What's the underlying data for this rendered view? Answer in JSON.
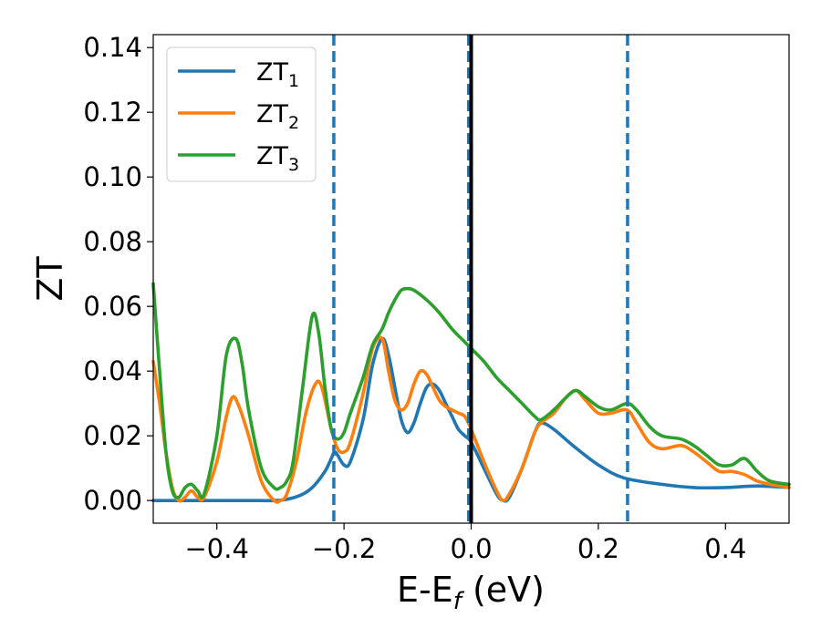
{
  "chart_data": {
    "type": "line",
    "xlabel_main": "E-E",
    "xlabel_sub": "f",
    "xlabel_unit": " (eV)",
    "ylabel": "ZT",
    "xlim": [
      -0.5,
      0.5
    ],
    "ylim": [
      -0.007,
      0.144
    ],
    "xticks": [
      -0.4,
      -0.2,
      0.0,
      0.2,
      0.4
    ],
    "xtick_labels": [
      "−0.4",
      "−0.2",
      "0.0",
      "0.2",
      "0.4"
    ],
    "yticks": [
      0.0,
      0.02,
      0.04,
      0.06,
      0.08,
      0.1,
      0.12,
      0.14
    ],
    "ytick_labels": [
      "0.00",
      "0.02",
      "0.04",
      "0.06",
      "0.08",
      "0.10",
      "0.12",
      "0.14"
    ],
    "grid": false,
    "legend_position": "top-left",
    "vlines": [
      {
        "x": -0.216,
        "style": "dashed",
        "color": "#1f77b4"
      },
      {
        "x": -0.004,
        "style": "dashed",
        "color": "#1f77b4"
      },
      {
        "x": 0.0,
        "style": "solid",
        "color": "#000000"
      },
      {
        "x": 0.246,
        "style": "dashed",
        "color": "#1f77b4"
      }
    ],
    "series": [
      {
        "name_main": "ZT",
        "name_sub": "1",
        "color": "#1f77b4",
        "x": [
          -0.5,
          -0.45,
          -0.4,
          -0.35,
          -0.3,
          -0.27,
          -0.25,
          -0.23,
          -0.22,
          -0.215,
          -0.21,
          -0.2,
          -0.19,
          -0.17,
          -0.155,
          -0.14,
          -0.13,
          -0.12,
          -0.11,
          -0.1,
          -0.09,
          -0.08,
          -0.07,
          -0.06,
          -0.05,
          -0.04,
          -0.03,
          -0.02,
          -0.01,
          0.0,
          0.02,
          0.04,
          0.05,
          0.06,
          0.08,
          0.1,
          0.11,
          0.13,
          0.16,
          0.2,
          0.24,
          0.3,
          0.35,
          0.4,
          0.45,
          0.5
        ],
        "y": [
          0.0,
          0.0,
          0.0,
          0.0,
          0.0001,
          0.0015,
          0.004,
          0.009,
          0.013,
          0.015,
          0.014,
          0.011,
          0.012,
          0.025,
          0.042,
          0.05,
          0.045,
          0.035,
          0.025,
          0.021,
          0.024,
          0.03,
          0.035,
          0.036,
          0.034,
          0.03,
          0.026,
          0.022,
          0.02,
          0.018,
          0.01,
          0.002,
          0.0,
          0.001,
          0.01,
          0.021,
          0.024,
          0.022,
          0.017,
          0.011,
          0.007,
          0.005,
          0.004,
          0.004,
          0.0045,
          0.004
        ]
      },
      {
        "name_main": "ZT",
        "name_sub": "2",
        "color": "#ff7f0e",
        "x": [
          -0.5,
          -0.49,
          -0.48,
          -0.47,
          -0.46,
          -0.45,
          -0.44,
          -0.43,
          -0.42,
          -0.4,
          -0.385,
          -0.375,
          -0.365,
          -0.35,
          -0.33,
          -0.31,
          -0.3,
          -0.29,
          -0.275,
          -0.26,
          -0.245,
          -0.235,
          -0.22,
          -0.21,
          -0.2,
          -0.19,
          -0.17,
          -0.155,
          -0.14,
          -0.13,
          -0.12,
          -0.11,
          -0.1,
          -0.09,
          -0.08,
          -0.07,
          -0.06,
          -0.05,
          -0.04,
          -0.03,
          -0.02,
          -0.01,
          0.0,
          0.02,
          0.04,
          0.05,
          0.06,
          0.08,
          0.1,
          0.11,
          0.13,
          0.15,
          0.165,
          0.18,
          0.2,
          0.22,
          0.245,
          0.26,
          0.28,
          0.3,
          0.33,
          0.35,
          0.37,
          0.39,
          0.41,
          0.43,
          0.45,
          0.47,
          0.5
        ],
        "y": [
          0.043,
          0.03,
          0.015,
          0.004,
          0.0,
          0.001,
          0.003,
          0.001,
          0.001,
          0.012,
          0.026,
          0.032,
          0.029,
          0.02,
          0.006,
          0.0,
          0.0,
          0.002,
          0.012,
          0.027,
          0.036,
          0.035,
          0.022,
          0.016,
          0.015,
          0.018,
          0.033,
          0.047,
          0.05,
          0.04,
          0.031,
          0.028,
          0.03,
          0.036,
          0.04,
          0.039,
          0.035,
          0.031,
          0.029,
          0.028,
          0.027,
          0.026,
          0.022,
          0.012,
          0.003,
          0.0,
          0.002,
          0.01,
          0.021,
          0.024,
          0.027,
          0.032,
          0.034,
          0.031,
          0.027,
          0.027,
          0.028,
          0.024,
          0.018,
          0.016,
          0.017,
          0.015,
          0.012,
          0.009,
          0.009,
          0.008,
          0.006,
          0.005,
          0.004
        ]
      },
      {
        "name_main": "ZT",
        "name_sub": "3",
        "color": "#2ca02c",
        "x": [
          -0.5,
          -0.49,
          -0.48,
          -0.47,
          -0.46,
          -0.45,
          -0.44,
          -0.43,
          -0.42,
          -0.4,
          -0.385,
          -0.37,
          -0.36,
          -0.35,
          -0.33,
          -0.31,
          -0.3,
          -0.29,
          -0.28,
          -0.265,
          -0.25,
          -0.24,
          -0.23,
          -0.22,
          -0.21,
          -0.2,
          -0.19,
          -0.17,
          -0.155,
          -0.14,
          -0.13,
          -0.12,
          -0.11,
          -0.1,
          -0.09,
          -0.07,
          -0.05,
          -0.03,
          -0.01,
          0.0,
          0.02,
          0.04,
          0.06,
          0.08,
          0.1,
          0.11,
          0.13,
          0.15,
          0.165,
          0.18,
          0.2,
          0.22,
          0.245,
          0.26,
          0.28,
          0.3,
          0.33,
          0.35,
          0.37,
          0.39,
          0.41,
          0.43,
          0.45,
          0.47,
          0.5
        ],
        "y": [
          0.067,
          0.04,
          0.015,
          0.003,
          0.001,
          0.004,
          0.005,
          0.003,
          0.002,
          0.02,
          0.045,
          0.05,
          0.042,
          0.028,
          0.01,
          0.004,
          0.004,
          0.006,
          0.012,
          0.035,
          0.057,
          0.052,
          0.035,
          0.022,
          0.019,
          0.021,
          0.027,
          0.038,
          0.048,
          0.053,
          0.058,
          0.062,
          0.065,
          0.0655,
          0.065,
          0.062,
          0.058,
          0.053,
          0.049,
          0.047,
          0.043,
          0.038,
          0.034,
          0.03,
          0.026,
          0.025,
          0.028,
          0.032,
          0.034,
          0.032,
          0.029,
          0.028,
          0.03,
          0.028,
          0.023,
          0.02,
          0.019,
          0.017,
          0.014,
          0.011,
          0.011,
          0.013,
          0.009,
          0.006,
          0.005
        ]
      }
    ]
  }
}
